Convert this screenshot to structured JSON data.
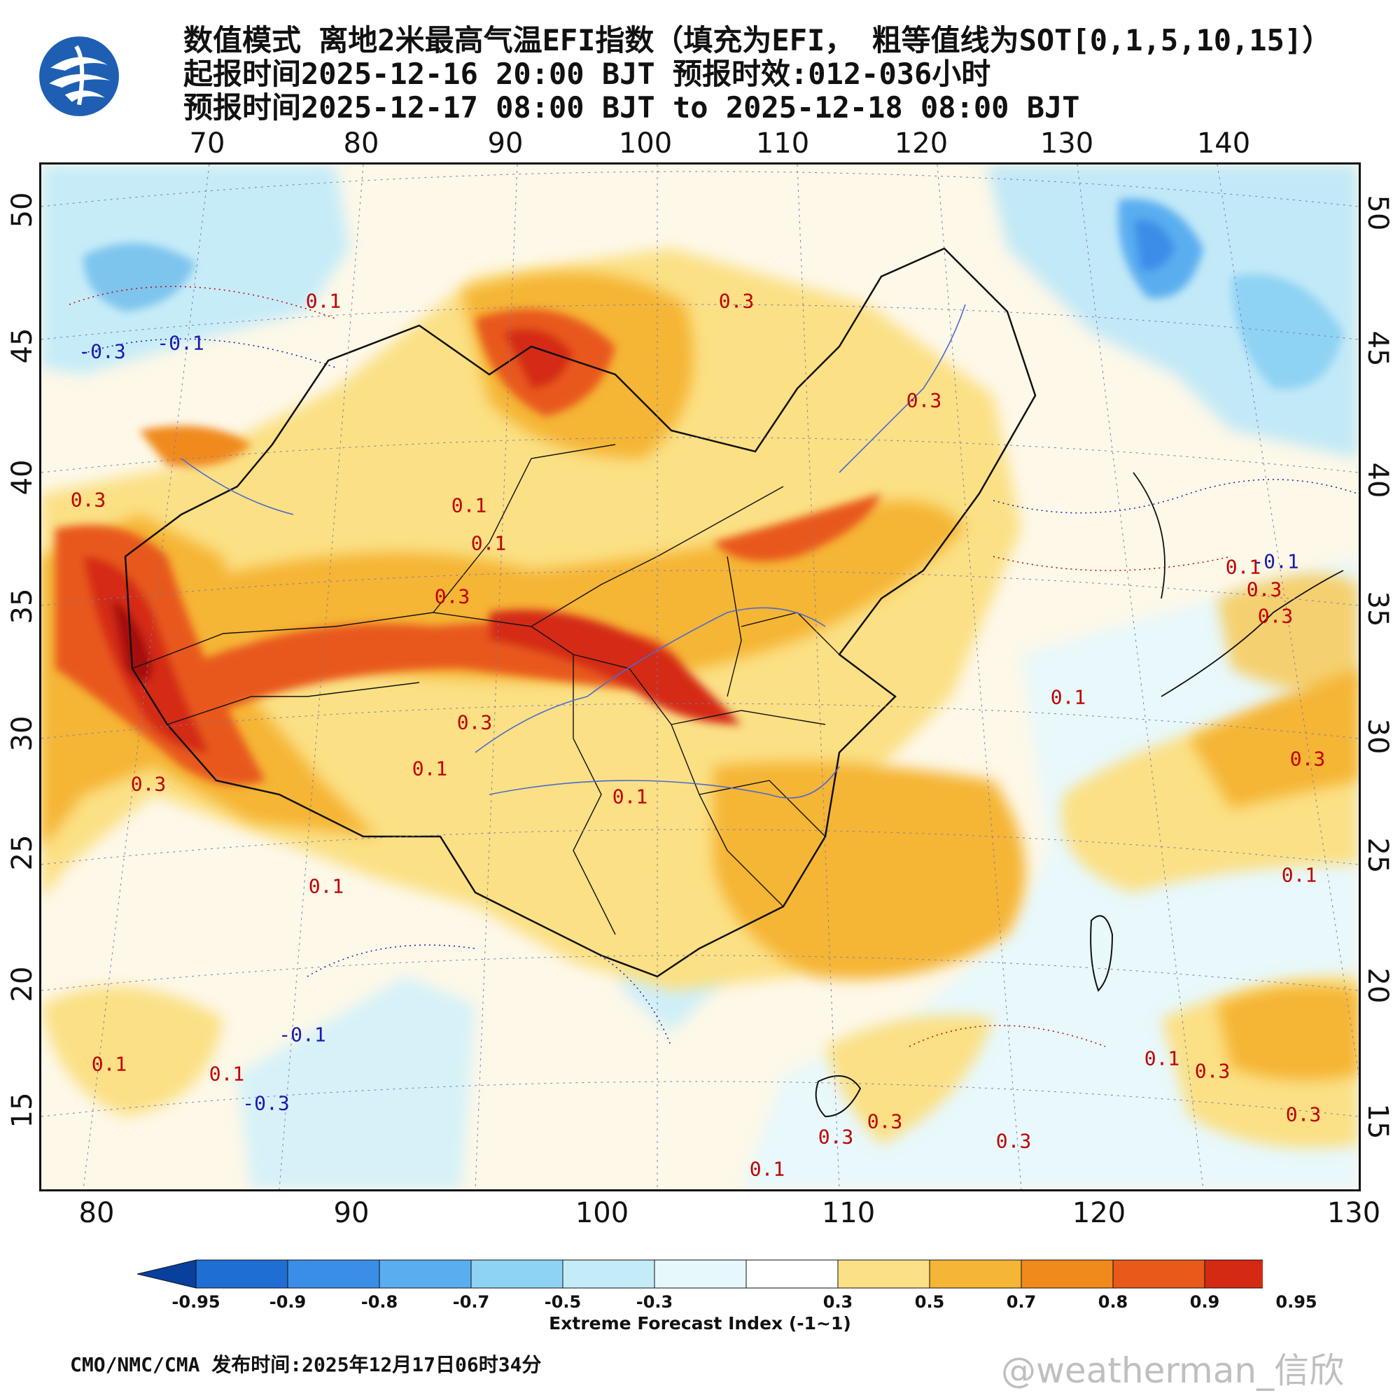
{
  "title": {
    "line1": "数值模式 离地2米最高气温EFI指数（填充为EFI， 粗等值线为SOT[0,1,5,10,15]）",
    "line2": "起报时间2025-12-16 20:00 BJT 预报时效:012-036小时",
    "line3": "预报时间2025-12-17 08:00 BJT to 2025-12-18 08:00 BJT"
  },
  "top_lon_labels": [
    "70",
    "80",
    "90",
    "100",
    "110",
    "120",
    "130",
    "140"
  ],
  "bottom_lon_labels": [
    "80",
    "90",
    "100",
    "110",
    "120",
    "130"
  ],
  "left_lat_labels": [
    "50",
    "45",
    "40",
    "35",
    "30",
    "25",
    "20",
    "15"
  ],
  "right_lat_labels": [
    "50",
    "45",
    "40",
    "35",
    "30",
    "25",
    "20",
    "15"
  ],
  "contour_labels": [
    {
      "text": "0.1",
      "color": "#c00000"
    },
    {
      "text": "-0.3",
      "color": "#1a1ab0"
    },
    {
      "text": "-0.1",
      "color": "#1a1ab0"
    },
    {
      "text": "0.3",
      "color": "#c00000"
    },
    {
      "text": "0.3",
      "color": "#c00000"
    },
    {
      "text": "0.3",
      "color": "#c00000"
    },
    {
      "text": "0.1",
      "color": "#c00000"
    },
    {
      "text": "0.1",
      "color": "#c00000"
    },
    {
      "text": "0.3",
      "color": "#c00000"
    },
    {
      "text": "0.3",
      "color": "#c00000"
    },
    {
      "text": "0.1",
      "color": "#c00000"
    },
    {
      "text": "0.3",
      "color": "#c00000"
    },
    {
      "text": "0.1",
      "color": "#c00000"
    },
    {
      "text": "0.1",
      "color": "#c00000"
    },
    {
      "text": "0.1",
      "color": "#c00000"
    },
    {
      "text": "-0.1",
      "color": "#1a1ab0"
    },
    {
      "text": "0.3",
      "color": "#c00000"
    },
    {
      "text": "0.3",
      "color": "#c00000"
    },
    {
      "text": "0.1",
      "color": "#c00000"
    },
    {
      "text": "0.3",
      "color": "#c00000"
    },
    {
      "text": "0.1",
      "color": "#c00000"
    },
    {
      "text": "0.3",
      "color": "#c00000"
    },
    {
      "text": "0.1",
      "color": "#c00000"
    },
    {
      "text": "0.3",
      "color": "#c00000"
    },
    {
      "text": "0.3",
      "color": "#c00000"
    },
    {
      "text": "0.3",
      "color": "#c00000"
    },
    {
      "text": "0.1",
      "color": "#c00000"
    },
    {
      "text": "0.3",
      "color": "#c00000"
    },
    {
      "text": "0.1",
      "color": "#c00000"
    },
    {
      "text": "-0.1",
      "color": "#1a1ab0"
    },
    {
      "text": "-0.3",
      "color": "#1a1ab0"
    },
    {
      "text": "0.1",
      "color": "#c00000"
    }
  ],
  "colorbar": {
    "colors": [
      "#08409e",
      "#1f6ed4",
      "#3a8ee8",
      "#5aaef0",
      "#8fd3f4",
      "#c4ecf8",
      "#e6f8fc",
      "#ffffff",
      "#fbe085",
      "#f5b536",
      "#f08a1c",
      "#e8591a",
      "#d42a14",
      "#a60d0d"
    ],
    "labels": [
      "-0.95",
      "-0.9",
      "-0.8",
      "-0.7",
      "-0.5",
      "-0.3",
      "0.3",
      "0.5",
      "0.7",
      "0.8",
      "0.9",
      "0.95"
    ],
    "title": "Extreme Forecast Index (-1~1)"
  },
  "footer": "CMO/NMC/CMA 发布时间:2025年12月17日06时34分",
  "watermark": "@weatherman_信欣"
}
